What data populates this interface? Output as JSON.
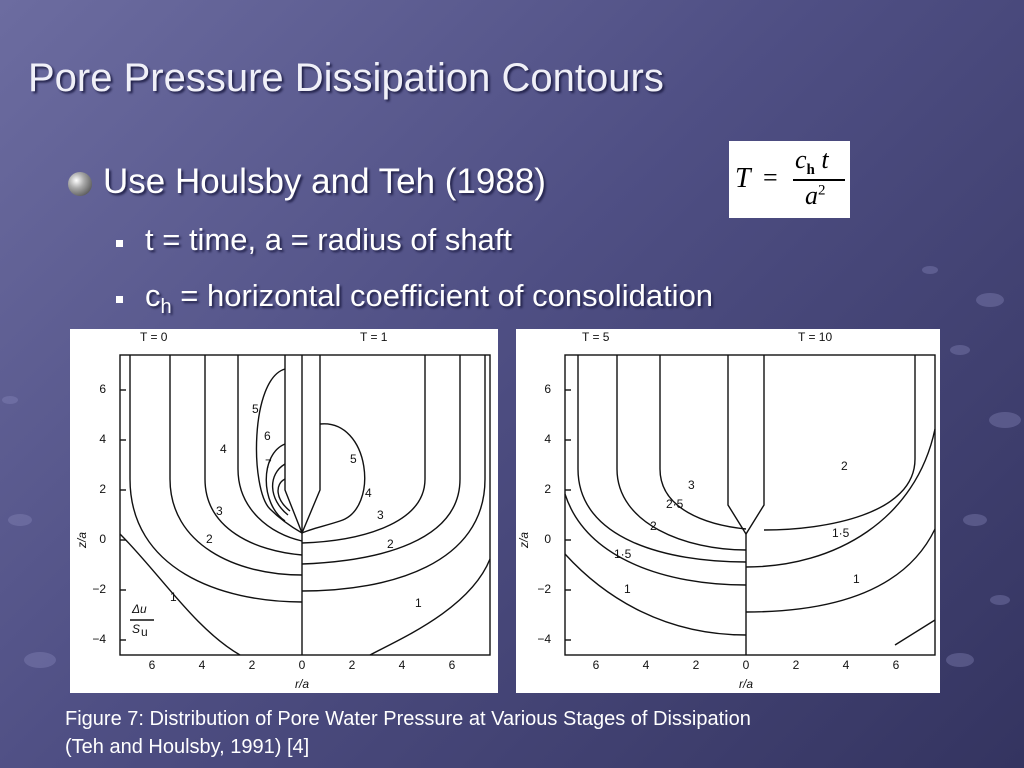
{
  "title": "Pore Pressure Dissipation Contours",
  "bullet": {
    "text": "Use Houlsby and Teh (1988)",
    "sub": [
      {
        "text": "t = time, a = radius of shaft"
      },
      {
        "symbol": "c",
        "subscript": "h",
        "text": "= horizontal coefficient of consolidation"
      }
    ]
  },
  "formula": {
    "lhs": "T",
    "equals": "=",
    "num_symbol": "c",
    "num_subscript": "h",
    "num_rest": "t",
    "den_symbol": "a",
    "den_superscript": "2"
  },
  "figures": [
    {
      "panels": [
        "T = 0",
        "T = 1"
      ],
      "yticks": [
        "6",
        "4",
        "2",
        "0",
        "−2",
        "−4"
      ],
      "xticks": [
        "6",
        "4",
        "2",
        "0",
        "2",
        "4",
        "6"
      ],
      "xlabel": "r/a",
      "ylabel": "z/a",
      "contour_labels": [
        "1",
        "2",
        "3",
        "4",
        "5",
        "6",
        "7",
        "5",
        "4",
        "3",
        "2",
        "1"
      ],
      "legend_num": "Δu",
      "legend_den": "S",
      "legend_sub": "u"
    },
    {
      "panels": [
        "T = 5",
        "T = 10"
      ],
      "yticks": [
        "6",
        "4",
        "2",
        "0",
        "−2",
        "−4"
      ],
      "xticks": [
        "6",
        "4",
        "2",
        "0",
        "2",
        "4",
        "6"
      ],
      "xlabel": "r/a",
      "ylabel": "z/a",
      "contour_labels": [
        "1",
        "1·5",
        "2",
        "2·5",
        "3",
        "2",
        "1·5",
        "1"
      ]
    }
  ],
  "caption": [
    "Figure 7: Distribution of Pore Water Pressure at Various Stages of Dissipation",
    "(Teh and Houlsby, 1991) [4]"
  ]
}
